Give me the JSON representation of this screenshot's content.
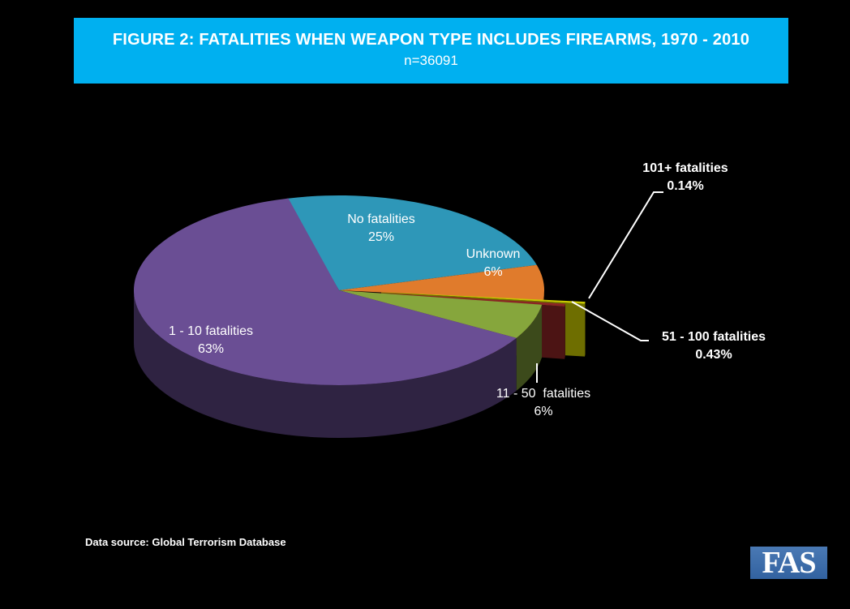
{
  "chart_data": {
    "type": "pie",
    "style": "3d-exploded",
    "title": "FIGURE 2: FATALITIES WHEN WEAPON TYPE INCLUDES FIREARMS, 1970 - 2010",
    "subtitle": "n=36091",
    "slices": [
      {
        "label": "No fatalities",
        "display": "25%",
        "value": 25,
        "color": "#2e97b8"
      },
      {
        "label": "Unknown",
        "display": "6%",
        "value": 6,
        "color": "#e07b2c"
      },
      {
        "label": "101+ fatalities",
        "display": "0.14%",
        "value": 0.14,
        "color": "#c8c800",
        "exploded": true
      },
      {
        "label": "51 - 100 fatalities",
        "display": "0.43%",
        "value": 0.43,
        "color": "#8b2525",
        "exploded": true
      },
      {
        "label": "11 - 50  fatalities",
        "display": "6%",
        "value": 6,
        "color": "#86a63c"
      },
      {
        "label": "1 - 10 fatalities",
        "display": "63%",
        "value": 63,
        "color": "#6a4e94"
      }
    ]
  },
  "source": "Data source: Global Terrorism Database",
  "logo": "FAS"
}
